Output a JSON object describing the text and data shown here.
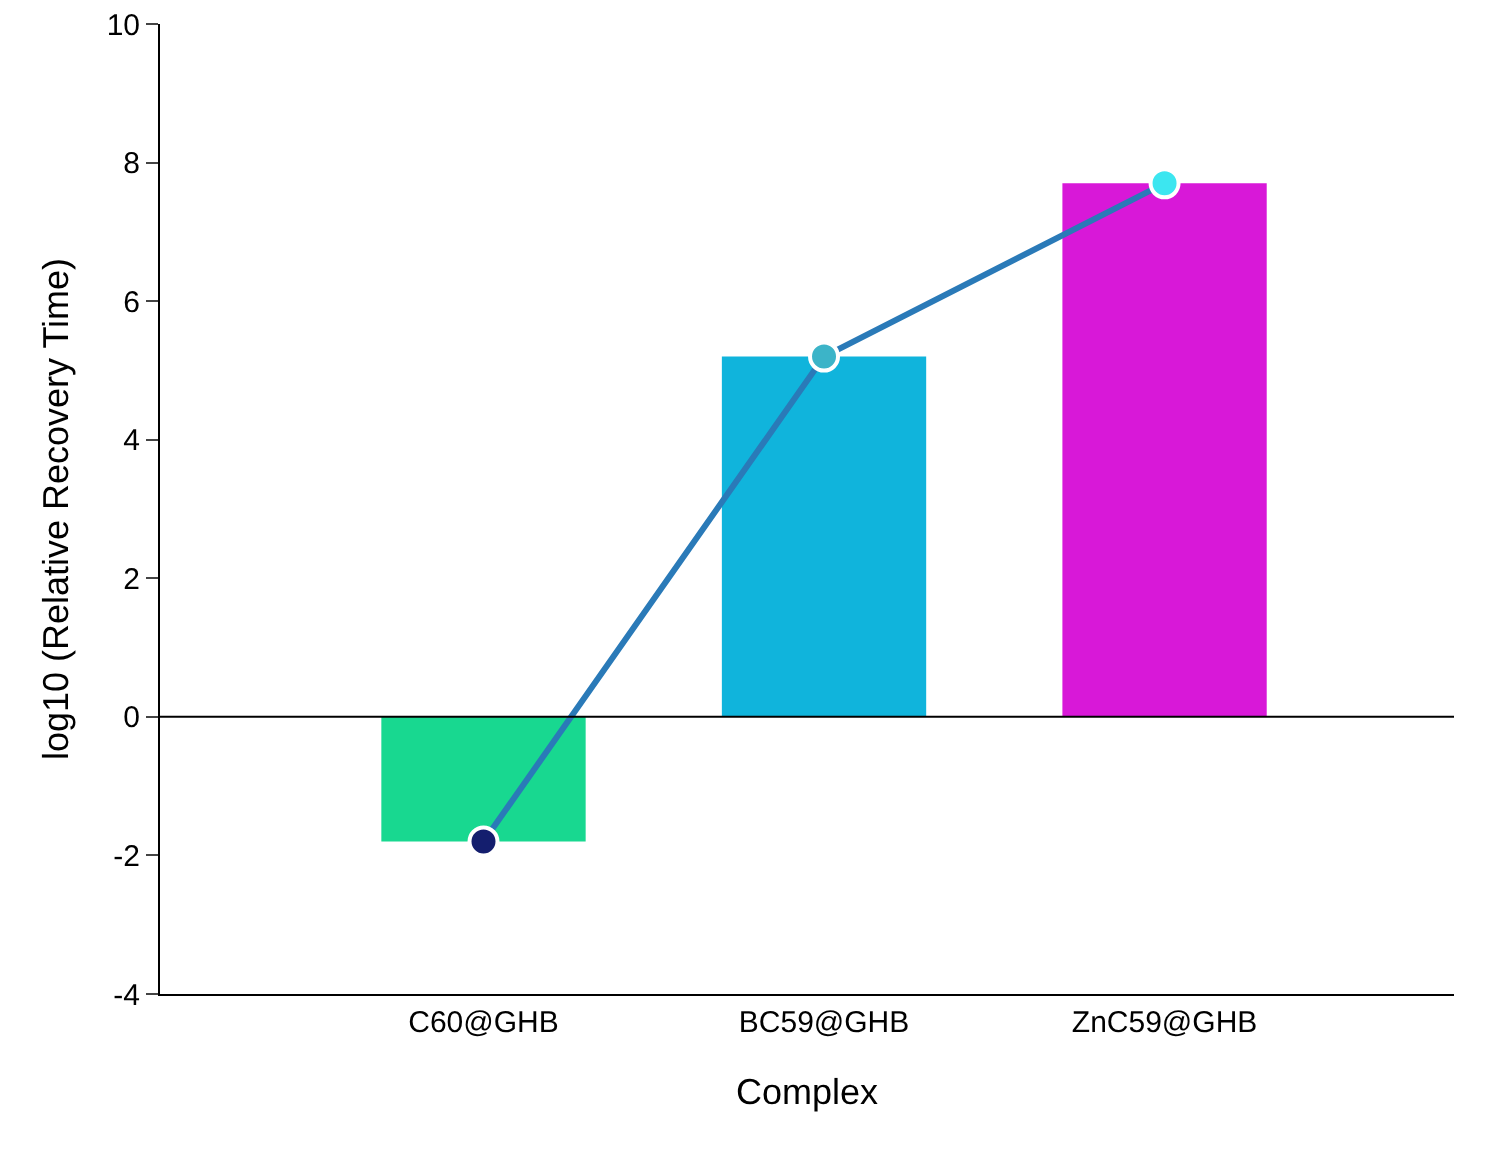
{
  "chart_data": {
    "type": "bar",
    "xlabel": "Complex",
    "ylabel": "log10 (Relative Recovery Time)",
    "categories": [
      "C60@GHB",
      "BC59@GHB",
      "ZnC59@GHB"
    ],
    "series": [
      {
        "colors": [
          "#18d890",
          "#10b4dc",
          "#d818d8"
        ],
        "values": [
          -1.8,
          5.2,
          7.7
        ]
      },
      {
        "type": "line",
        "color": "#2a7ab8",
        "colors": [
          "#141e6e",
          "#3cb4c8",
          "#3ce6f0"
        ],
        "values": [
          -1.8,
          5.2,
          7.7
        ],
        "marker": "circle",
        "line_style": "solid"
      }
    ],
    "ylim": [
      -4,
      10
    ],
    "yticks": [
      -4,
      -2,
      0,
      2,
      4,
      6,
      8,
      10
    ],
    "ref_lines": [
      {
        "axis": "y",
        "value": 0,
        "color": "#000000"
      }
    ],
    "grid": false
  }
}
